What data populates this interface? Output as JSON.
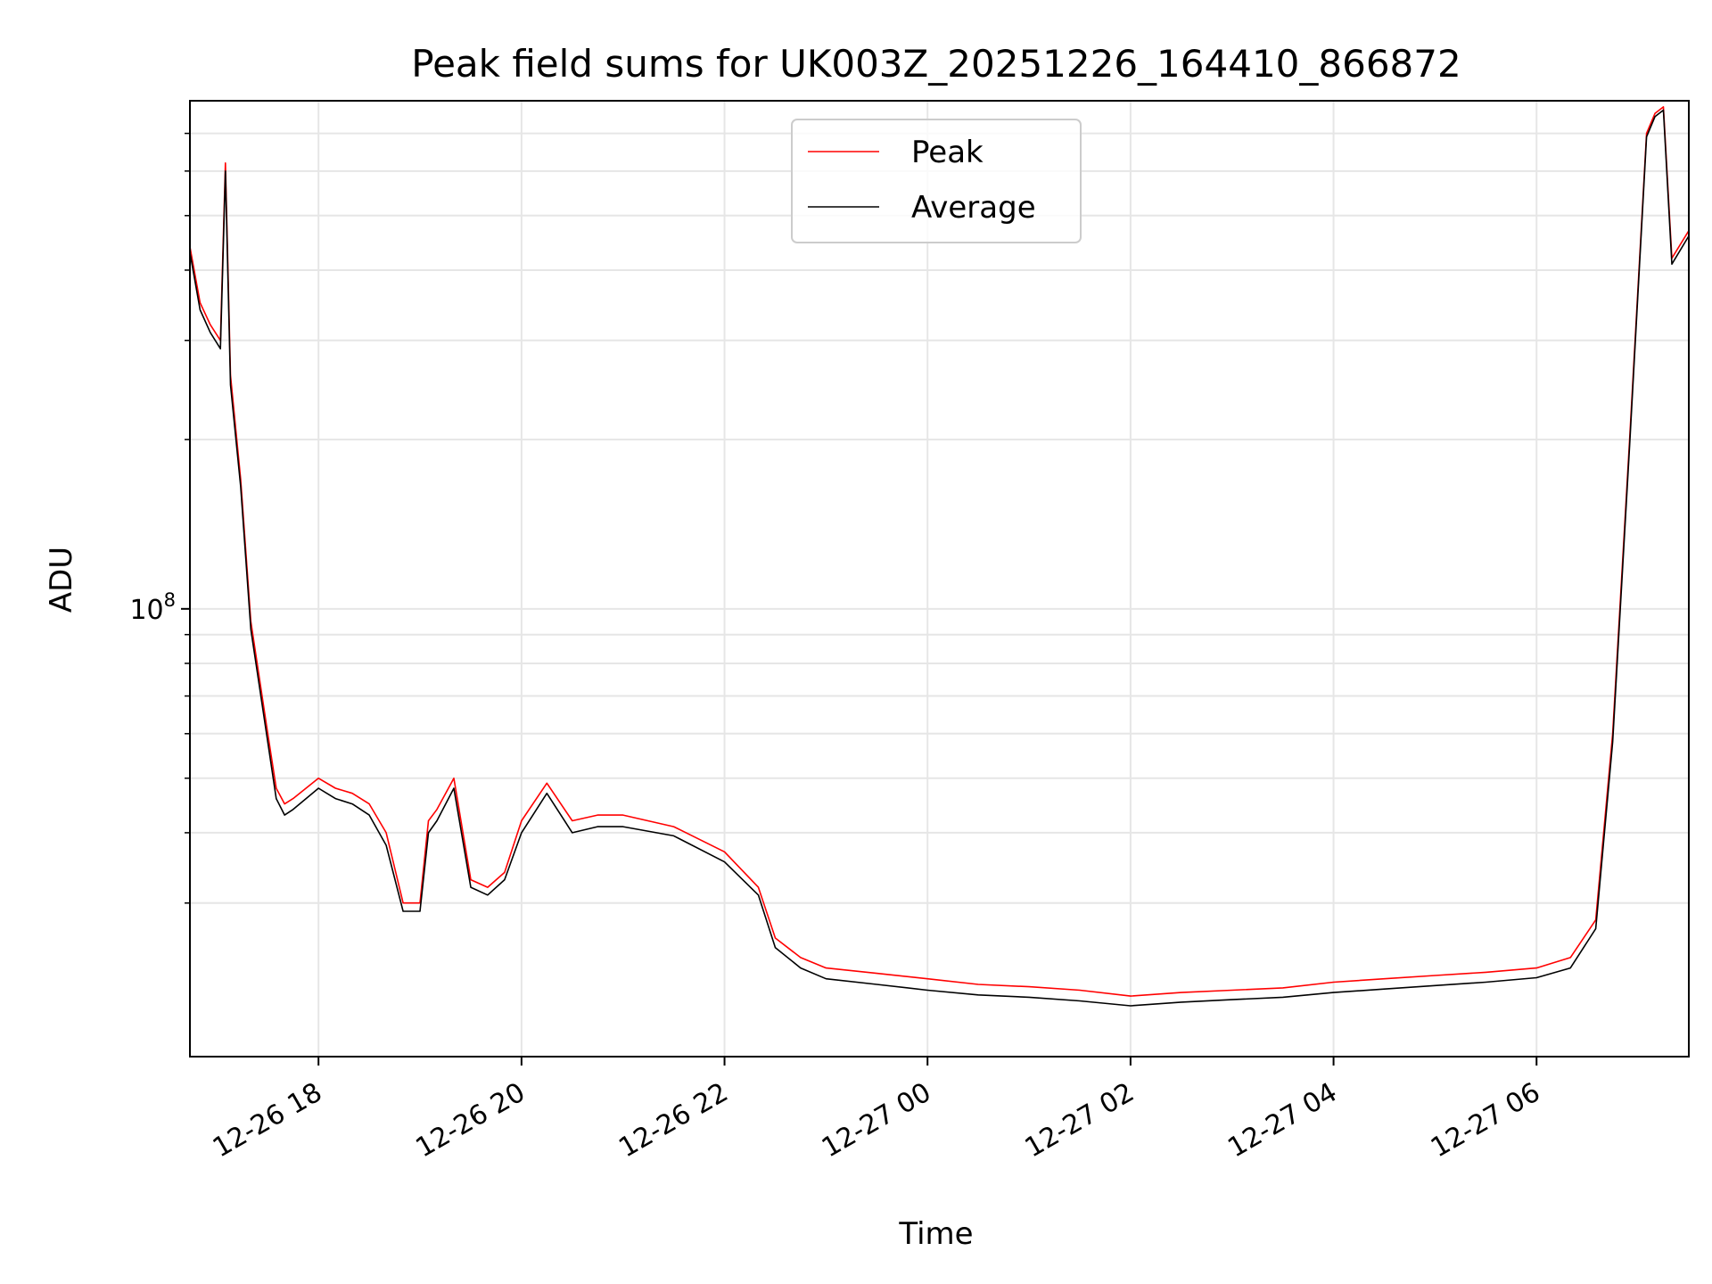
{
  "chart_data": {
    "type": "line",
    "title": "Peak field sums for UK003Z_20251226_164410_866872",
    "xlabel": "Time",
    "ylabel": "ADU",
    "yscale": "log",
    "grid": true,
    "legend_placement": "upper center",
    "x_range": [
      "2025-12-26T16:44",
      "2025-12-27T07:30"
    ],
    "y_range": [
      16000000,
      800000000
    ],
    "x_ticks": [
      {
        "label": "12-26 18",
        "value": "2025-12-26T18:00"
      },
      {
        "label": "12-26 20",
        "value": "2025-12-26T20:00"
      },
      {
        "label": "12-26 22",
        "value": "2025-12-26T22:00"
      },
      {
        "label": "12-27 00",
        "value": "2025-12-27T00:00"
      },
      {
        "label": "12-27 02",
        "value": "2025-12-27T02:00"
      },
      {
        "label": "12-27 04",
        "value": "2025-12-27T04:00"
      },
      {
        "label": "12-27 06",
        "value": "2025-12-27T06:00"
      }
    ],
    "y_ticks": [
      {
        "label_base": "10",
        "label_exp": "8",
        "value": 100000000
      }
    ],
    "y_minor_ticks": [
      30000000,
      40000000,
      50000000,
      60000000,
      70000000,
      80000000,
      90000000,
      200000000,
      300000000,
      400000000,
      500000000,
      600000000,
      700000000
    ],
    "colors": {
      "peak": "#ff0000",
      "average": "#000000"
    },
    "series": [
      {
        "name": "Peak",
        "x": [
          "2025-12-26T16:44",
          "2025-12-26T16:50",
          "2025-12-26T16:56",
          "2025-12-26T17:02",
          "2025-12-26T17:05",
          "2025-12-26T17:08",
          "2025-12-26T17:14",
          "2025-12-26T17:20",
          "2025-12-26T17:30",
          "2025-12-26T17:35",
          "2025-12-26T17:40",
          "2025-12-26T17:45",
          "2025-12-26T18:00",
          "2025-12-26T18:10",
          "2025-12-26T18:20",
          "2025-12-26T18:30",
          "2025-12-26T18:40",
          "2025-12-26T18:50",
          "2025-12-26T19:00",
          "2025-12-26T19:05",
          "2025-12-26T19:10",
          "2025-12-26T19:20",
          "2025-12-26T19:30",
          "2025-12-26T19:40",
          "2025-12-26T19:50",
          "2025-12-26T20:00",
          "2025-12-26T20:15",
          "2025-12-26T20:30",
          "2025-12-26T20:45",
          "2025-12-26T21:00",
          "2025-12-26T21:30",
          "2025-12-26T22:00",
          "2025-12-26T22:20",
          "2025-12-26T22:30",
          "2025-12-26T22:45",
          "2025-12-26T23:00",
          "2025-12-26T23:30",
          "2025-12-27T00:00",
          "2025-12-27T00:30",
          "2025-12-27T01:00",
          "2025-12-27T01:30",
          "2025-12-27T02:00",
          "2025-12-27T02:30",
          "2025-12-27T03:00",
          "2025-12-27T03:30",
          "2025-12-27T04:00",
          "2025-12-27T04:30",
          "2025-12-27T05:00",
          "2025-12-27T05:30",
          "2025-12-27T06:00",
          "2025-12-27T06:20",
          "2025-12-27T06:35",
          "2025-12-27T06:45",
          "2025-12-27T06:55",
          "2025-12-27T07:05",
          "2025-12-27T07:10",
          "2025-12-27T07:15",
          "2025-12-27T07:20",
          "2025-12-27T07:30"
        ],
        "y": [
          440000000,
          350000000,
          320000000,
          300000000,
          620000000,
          260000000,
          170000000,
          95000000,
          60000000,
          48000000,
          45000000,
          46000000,
          50000000,
          48000000,
          47000000,
          45000000,
          40000000,
          30000000,
          30000000,
          42000000,
          44000000,
          50000000,
          33000000,
          32000000,
          34000000,
          42000000,
          49000000,
          42000000,
          43000000,
          43000000,
          41000000,
          37000000,
          32000000,
          26000000,
          24000000,
          23000000,
          22500000,
          22000000,
          21500000,
          21300000,
          21000000,
          20500000,
          20800000,
          21000000,
          21200000,
          21700000,
          22000000,
          22300000,
          22600000,
          23000000,
          24000000,
          28000000,
          60000000,
          200000000,
          700000000,
          760000000,
          780000000,
          420000000,
          470000000
        ]
      },
      {
        "name": "Average",
        "x": [
          "2025-12-26T16:44",
          "2025-12-26T16:50",
          "2025-12-26T16:56",
          "2025-12-26T17:02",
          "2025-12-26T17:05",
          "2025-12-26T17:08",
          "2025-12-26T17:14",
          "2025-12-26T17:20",
          "2025-12-26T17:30",
          "2025-12-26T17:35",
          "2025-12-26T17:40",
          "2025-12-26T17:45",
          "2025-12-26T18:00",
          "2025-12-26T18:10",
          "2025-12-26T18:20",
          "2025-12-26T18:30",
          "2025-12-26T18:40",
          "2025-12-26T18:50",
          "2025-12-26T19:00",
          "2025-12-26T19:05",
          "2025-12-26T19:10",
          "2025-12-26T19:20",
          "2025-12-26T19:30",
          "2025-12-26T19:40",
          "2025-12-26T19:50",
          "2025-12-26T20:00",
          "2025-12-26T20:15",
          "2025-12-26T20:30",
          "2025-12-26T20:45",
          "2025-12-26T21:00",
          "2025-12-26T21:30",
          "2025-12-26T22:00",
          "2025-12-26T22:20",
          "2025-12-26T22:30",
          "2025-12-26T22:45",
          "2025-12-26T23:00",
          "2025-12-26T23:30",
          "2025-12-27T00:00",
          "2025-12-27T00:30",
          "2025-12-27T01:00",
          "2025-12-27T01:30",
          "2025-12-27T02:00",
          "2025-12-27T02:30",
          "2025-12-27T03:00",
          "2025-12-27T03:30",
          "2025-12-27T04:00",
          "2025-12-27T04:30",
          "2025-12-27T05:00",
          "2025-12-27T05:30",
          "2025-12-27T06:00",
          "2025-12-27T06:20",
          "2025-12-27T06:35",
          "2025-12-27T06:45",
          "2025-12-27T06:55",
          "2025-12-27T07:05",
          "2025-12-27T07:10",
          "2025-12-27T07:15",
          "2025-12-27T07:20",
          "2025-12-27T07:30"
        ],
        "y": [
          430000000,
          340000000,
          310000000,
          290000000,
          600000000,
          250000000,
          165000000,
          92000000,
          58000000,
          46000000,
          43000000,
          44000000,
          48000000,
          46000000,
          45000000,
          43000000,
          38000000,
          29000000,
          29000000,
          40000000,
          42000000,
          48000000,
          32000000,
          31000000,
          33000000,
          40000000,
          47000000,
          40000000,
          41000000,
          41000000,
          39500000,
          35500000,
          31000000,
          25000000,
          23000000,
          22000000,
          21500000,
          21000000,
          20600000,
          20400000,
          20100000,
          19700000,
          20000000,
          20200000,
          20400000,
          20800000,
          21100000,
          21400000,
          21700000,
          22100000,
          23000000,
          27000000,
          58000000,
          195000000,
          690000000,
          750000000,
          770000000,
          410000000,
          460000000
        ]
      }
    ]
  }
}
